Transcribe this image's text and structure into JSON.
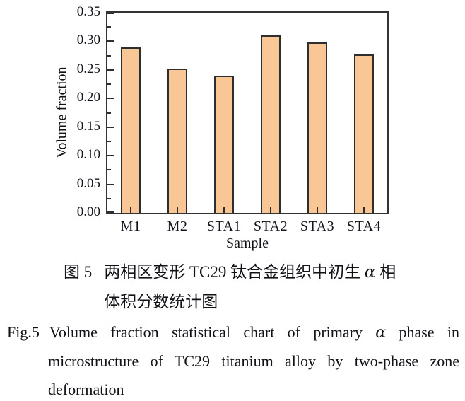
{
  "chart_data": {
    "type": "bar",
    "categories": [
      "M1",
      "M2",
      "STA1",
      "STA2",
      "STA3",
      "STA4"
    ],
    "values": [
      0.289,
      0.252,
      0.24,
      0.31,
      0.298,
      0.277
    ],
    "title": "",
    "xlabel": "Sample",
    "ylabel": "Volume fraction",
    "ylim": [
      0.0,
      0.35
    ],
    "ytick_labels": [
      "0.00",
      "0.05",
      "0.10",
      "0.15",
      "0.20",
      "0.25",
      "0.30",
      "0.35"
    ],
    "minor_ticks_interval": 0.025,
    "grid": false,
    "legend": "none",
    "bar_fill_color": "#F9C795",
    "bar_edge_color": "#2E2E2E",
    "axis_color": "#333333"
  },
  "caption_cn": {
    "fig_label": "图 5",
    "line1_pre": "两相区变形 TC29 钛合金组织中初生 ",
    "line1_alpha": "α",
    "line1_post": " 相",
    "line2": "体积分数统计图"
  },
  "caption_en": {
    "fig_label": "Fig.5",
    "line1_pre": "Volume fraction statistical chart of primary ",
    "line1_alpha": "α",
    "line1_post": " phase in",
    "line2": "microstructure of TC29 titanium alloy by two-phase zone",
    "line3": "deformation"
  }
}
